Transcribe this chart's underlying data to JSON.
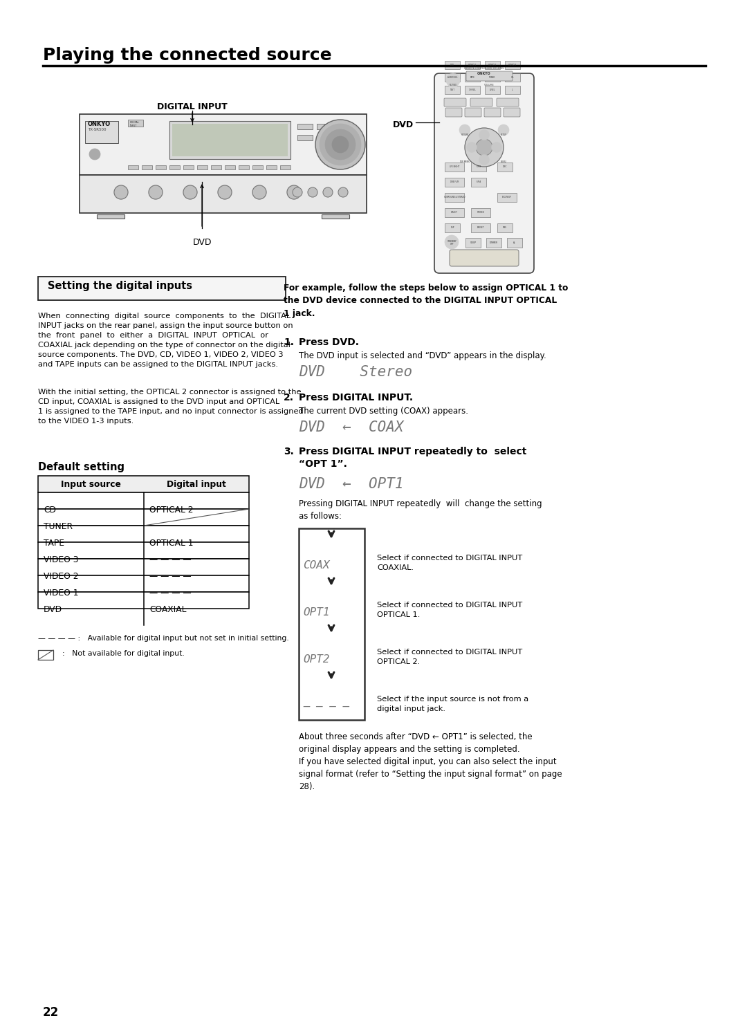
{
  "title": "Playing the connected source",
  "page_number": "22",
  "bg_color": "#ffffff",
  "left_box_title": "Setting the digital inputs",
  "left_para1": "When  connecting  digital  source  components  to  the  DIGITAL\nINPUT jacks on the rear panel, assign the input source button on\nthe  front  panel  to  either  a  DIGITAL  INPUT  OPTICAL  or\nCOAXIAL jack depending on the type of connector on the digital\nsource components. The DVD, CD, VIDEO 1, VIDEO 2, VIDEO 3\nand TAPE inputs can be assigned to the DIGITAL INPUT jacks.",
  "left_para2": "With the initial setting, the OPTICAL 2 connector is assigned to the\nCD input, COAXIAL is assigned to the DVD input and OPTICAL\n1 is assigned to the TAPE input, and no input connector is assigned\nto the VIDEO 1-3 inputs.",
  "default_setting_title": "Default setting",
  "table_headers": [
    "Input source",
    "Digital input"
  ],
  "table_rows": [
    [
      "CD",
      "OPTICAL 2",
      false
    ],
    [
      "TUNER",
      "",
      true
    ],
    [
      "TAPE",
      "OPTICAL 1",
      false
    ],
    [
      "VIDEO 3",
      "— — — —",
      false
    ],
    [
      "VIDEO 2",
      "— — — —",
      false
    ],
    [
      "VIDEO 1",
      "— — — —",
      false
    ],
    [
      "DVD",
      "COAXIAL",
      false
    ]
  ],
  "note1": "— — — — :   Available for digital input but not set in initial setting.",
  "note2": "  :   Not available for digital input.",
  "right_intro_bold": "For example, follow the steps below to assign OPTICAL 1 to\nthe DVD device connected to the DIGITAL INPUT OPTICAL\n1 jack.",
  "step1_num": "1.",
  "step1_label": "Press DVD.",
  "step1_text": "The DVD input is selected and “DVD” appears in the display.",
  "step1_display": "DVD    Stereo",
  "step2_num": "2.",
  "step2_label": "Press DIGITAL INPUT.",
  "step2_text": "The current DVD setting (COAX) appears.",
  "step2_display": "DVD  ←  COAX",
  "step3_num": "3.",
  "step3_label": "Press DIGITAL INPUT repeatedly to  select\n“OPT 1”.",
  "step3_display": "DVD  ←  OPT1",
  "step3_text1": "Pressing DIGITAL INPUT repeatedly  will  change the setting\nas follows:",
  "flow_items": [
    "COAX",
    "OPT1",
    "OPT2",
    "— — — —"
  ],
  "flow_labels": [
    "Select if connected to DIGITAL INPUT\nCOAXIAL.",
    "Select if connected to DIGITAL INPUT\nOPTICAL 1.",
    "Select if connected to DIGITAL INPUT\nOPTICAL 2.",
    "Select if the input source is not from a\ndigital input jack."
  ],
  "final_text": "About three seconds after “DVD ← OPT1” is selected, the\noriginal display appears and the setting is completed.\nIf you have selected digital input, you can also select the input\nsignal format (refer to “Setting the input signal format” on page\n28).",
  "digital_input_label": "DIGITAL INPUT",
  "dvd_label_receiver": "DVD",
  "dvd_label_remote": "DVD"
}
